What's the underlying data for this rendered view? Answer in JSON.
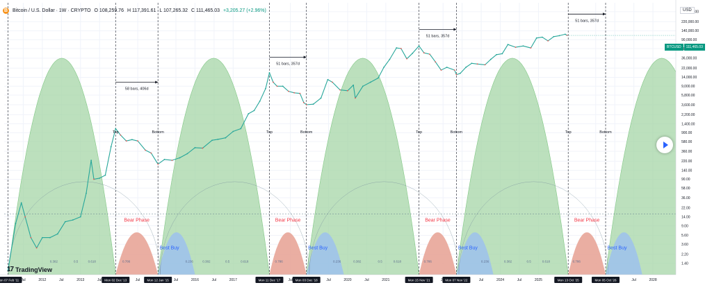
{
  "header": {
    "symbol": "Bitcoin / U.S. Dollar · 1W · CRYPTO",
    "coin_glyph": "B",
    "open": "O 108,259.76",
    "high": "H 117,391.61",
    "low": "L 107,265.32",
    "close": "C 111,465.03",
    "change": "+3,205.27 (+2.96%)"
  },
  "axis_currency": "USD",
  "last_price": {
    "symbol": "BTCUSD",
    "value": "111,465.03"
  },
  "logo": {
    "mark": "17",
    "name": "TradingView"
  },
  "colors": {
    "green": "#a5d6a7",
    "red": "#e8a598",
    "blue": "#9ec3ea",
    "price": "#26a69a",
    "price_down": "#ef5350",
    "bear_text": "#f23645",
    "buy_text": "#2962ff"
  },
  "chart_data": {
    "type": "line",
    "title": "",
    "xlabel": "",
    "ylabel": "",
    "yscale": "log",
    "xlim": [
      2011.0,
      2028.6
    ],
    "ylim": [
      0.8,
      560000
    ],
    "y_ticks": [
      {
        "v": 1.4,
        "label": "1.40"
      },
      {
        "v": 2.2,
        "label": "2.20"
      },
      {
        "v": 3.6,
        "label": "3.60"
      },
      {
        "v": 5.6,
        "label": "5.60"
      },
      {
        "v": 9,
        "label": "9.00"
      },
      {
        "v": 14,
        "label": "14.00"
      },
      {
        "v": 22,
        "label": "22.00"
      },
      {
        "v": 36,
        "label": "36.00"
      },
      {
        "v": 58,
        "label": "58.00"
      },
      {
        "v": 90,
        "label": "90.00"
      },
      {
        "v": 140,
        "label": "140.00"
      },
      {
        "v": 220,
        "label": "220.00"
      },
      {
        "v": 360,
        "label": "360.00"
      },
      {
        "v": 580,
        "label": "580.00"
      },
      {
        "v": 900,
        "label": "900.00"
      },
      {
        "v": 1400,
        "label": "1,400.00"
      },
      {
        "v": 2200,
        "label": "2,200.00"
      },
      {
        "v": 3600,
        "label": "3,600.00"
      },
      {
        "v": 5800,
        "label": "5,800.00"
      },
      {
        "v": 9000,
        "label": "9,000.00"
      },
      {
        "v": 14000,
        "label": "14,000.00"
      },
      {
        "v": 22000,
        "label": "22,000.00"
      },
      {
        "v": 36000,
        "label": "36,000.00"
      },
      {
        "v": 58000,
        "label": "58,000.00"
      },
      {
        "v": 90000,
        "label": "90,000.00"
      },
      {
        "v": 140000,
        "label": "140,000.00"
      },
      {
        "v": 220000,
        "label": "220,000.00"
      },
      {
        "v": 360000,
        "label": "360,000.00"
      }
    ],
    "x_ticks": [
      {
        "t": 2011.5,
        "label": "Jul"
      },
      {
        "t": 2012.0,
        "label": "2012"
      },
      {
        "t": 2012.5,
        "label": "Jul"
      },
      {
        "t": 2013.0,
        "label": "2013"
      },
      {
        "t": 2013.5,
        "label": "Jul"
      },
      {
        "t": 2014.5,
        "label": "Jul"
      },
      {
        "t": 2015.5,
        "label": "Jul"
      },
      {
        "t": 2016.0,
        "label": "2016"
      },
      {
        "t": 2016.5,
        "label": "Jul"
      },
      {
        "t": 2017.0,
        "label": "2017"
      },
      {
        "t": 2018.5,
        "label": "Jul"
      },
      {
        "t": 2019.5,
        "label": "Jul"
      },
      {
        "t": 2020.0,
        "label": "2020"
      },
      {
        "t": 2020.5,
        "label": "Jul"
      },
      {
        "t": 2021.0,
        "label": "2021"
      },
      {
        "t": 2022.5,
        "label": "Jul"
      },
      {
        "t": 2023.0,
        "label": "2023"
      },
      {
        "t": 2023.5,
        "label": "Jul"
      },
      {
        "t": 2024.0,
        "label": "2024"
      },
      {
        "t": 2024.5,
        "label": "Jul"
      },
      {
        "t": 2025.0,
        "label": "2025"
      },
      {
        "t": 2026.5,
        "label": "Jul"
      },
      {
        "t": 2027.0,
        "label": "2027"
      },
      {
        "t": 2027.5,
        "label": "Jul"
      },
      {
        "t": 2028.0,
        "label": "2028"
      }
    ],
    "date_markers": [
      {
        "t": 2011.1,
        "label": "Mon 07 Feb '11"
      },
      {
        "t": 2013.92,
        "label": "Mon 02 Dec '13"
      },
      {
        "t": 2015.03,
        "label": "Mon 12 Jan '15"
      },
      {
        "t": 2017.95,
        "label": "Mon 11 Dec '17"
      },
      {
        "t": 2018.92,
        "label": "Mon 03 Dec '18"
      },
      {
        "t": 2021.87,
        "label": "Mon 15 Nov '21"
      },
      {
        "t": 2022.85,
        "label": "Mon 07 Nov '22"
      },
      {
        "t": 2025.78,
        "label": "Mon 13 Oct '25"
      },
      {
        "t": 2026.76,
        "label": "Mon 05 Oct '26"
      }
    ],
    "big_arcs": [
      {
        "t0": 2011.1,
        "t1": 2013.92
      },
      {
        "t0": 2015.03,
        "t1": 2017.95
      },
      {
        "t0": 2018.92,
        "t1": 2021.87
      },
      {
        "t0": 2022.85,
        "t1": 2025.78
      },
      {
        "t0": 2026.76,
        "t1": 2029.7
      }
    ],
    "arc_peak": 36000,
    "bear_arcs": [
      {
        "t0": 2013.92,
        "t1": 2015.03,
        "label": "Bear Phase"
      },
      {
        "t0": 2017.95,
        "t1": 2018.92,
        "label": "Bear Phase"
      },
      {
        "t0": 2021.87,
        "t1": 2022.85,
        "label": "Bear Phase"
      },
      {
        "t0": 2025.78,
        "t1": 2026.76,
        "label": "Bear Phase"
      }
    ],
    "buy_arcs": [
      {
        "t0": 2015.03,
        "t1": 2016.0,
        "label": "Best Buy"
      },
      {
        "t0": 2018.92,
        "t1": 2019.9,
        "label": "Best Buy"
      },
      {
        "t0": 2022.85,
        "t1": 2023.82,
        "label": "Best Buy"
      },
      {
        "t0": 2026.76,
        "t1": 2027.72,
        "label": "Best Buy"
      }
    ],
    "small_arc_peak": 6.5,
    "bear_label_price": 11,
    "buy_label_price": 2.8,
    "top_bottom_labels": [
      {
        "t": 2013.92,
        "text": "Top"
      },
      {
        "t": 2015.03,
        "text": "Bottom"
      },
      {
        "t": 2017.95,
        "text": "Top"
      },
      {
        "t": 2018.92,
        "text": "Bottom"
      },
      {
        "t": 2021.87,
        "text": "Top"
      },
      {
        "t": 2022.85,
        "text": "Bottom"
      },
      {
        "t": 2025.78,
        "text": "Top"
      },
      {
        "t": 2026.76,
        "text": "Bottom"
      }
    ],
    "top_bottom_price": 880,
    "spans": [
      {
        "t0": 2013.92,
        "t1": 2015.03,
        "price": 11000,
        "label": "58 bars, 406d"
      },
      {
        "t0": 2017.95,
        "t1": 2018.92,
        "price": 38000,
        "label": "51 bars, 357d"
      },
      {
        "t0": 2021.87,
        "t1": 2022.85,
        "price": 150000,
        "label": "51 bars, 357d"
      },
      {
        "t0": 2025.78,
        "t1": 2026.76,
        "price": 320000,
        "label": "51 bars, 357d"
      }
    ],
    "fib_levels": [
      {
        "t": 2012.3,
        "label": "0.382"
      },
      {
        "t": 2012.88,
        "label": "0.5"
      },
      {
        "t": 2013.3,
        "label": "0.618"
      },
      {
        "t": 2014.2,
        "label": "0.786"
      },
      {
        "t": 2015.85,
        "label": "0.236"
      },
      {
        "t": 2016.3,
        "label": "0.382"
      },
      {
        "t": 2016.85,
        "label": "0.5"
      },
      {
        "t": 2017.3,
        "label": "0.618"
      },
      {
        "t": 2018.2,
        "label": "0.786"
      },
      {
        "t": 2019.72,
        "label": "0.236"
      },
      {
        "t": 2020.25,
        "label": "0.382"
      },
      {
        "t": 2020.85,
        "label": "0.5"
      },
      {
        "t": 2021.3,
        "label": "0.618"
      },
      {
        "t": 2022.1,
        "label": "0.786"
      },
      {
        "t": 2023.6,
        "label": "0.236"
      },
      {
        "t": 2024.2,
        "label": "0.382"
      },
      {
        "t": 2024.75,
        "label": "0.5"
      },
      {
        "t": 2025.2,
        "label": "0.618"
      },
      {
        "t": 2026.0,
        "label": "0.786"
      }
    ],
    "fib_price": 1.45,
    "hline_price": 16,
    "series": [
      {
        "name": "BTCUSD",
        "x": [
          2011.1,
          2011.3,
          2011.45,
          2011.55,
          2011.7,
          2011.85,
          2012.0,
          2012.2,
          2012.4,
          2012.6,
          2012.8,
          2013.0,
          2013.15,
          2013.28,
          2013.35,
          2013.5,
          2013.65,
          2013.8,
          2013.92,
          2014.05,
          2014.2,
          2014.35,
          2014.5,
          2014.7,
          2014.85,
          2015.03,
          2015.2,
          2015.4,
          2015.6,
          2015.8,
          2016.0,
          2016.2,
          2016.45,
          2016.6,
          2016.8,
          2017.0,
          2017.2,
          2017.4,
          2017.55,
          2017.7,
          2017.85,
          2017.95,
          2018.05,
          2018.15,
          2018.3,
          2018.45,
          2018.6,
          2018.75,
          2018.85,
          2018.92,
          2019.1,
          2019.3,
          2019.48,
          2019.6,
          2019.8,
          2020.0,
          2020.15,
          2020.2,
          2020.4,
          2020.6,
          2020.8,
          2020.95,
          2021.1,
          2021.28,
          2021.4,
          2021.55,
          2021.7,
          2021.87,
          2022.0,
          2022.15,
          2022.3,
          2022.45,
          2022.6,
          2022.8,
          2022.85,
          2022.95,
          2023.1,
          2023.25,
          2023.4,
          2023.6,
          2023.75,
          2023.9,
          2024.05,
          2024.2,
          2024.4,
          2024.6,
          2024.8,
          2024.95,
          2025.1,
          2025.25,
          2025.4,
          2025.55,
          2025.7,
          2025.75
        ],
        "values": [
          1.0,
          10,
          28,
          14,
          5,
          3,
          5,
          5,
          6,
          11,
          12,
          14,
          45,
          230,
          90,
          95,
          110,
          450,
          1100,
          800,
          600,
          640,
          600,
          380,
          330,
          190,
          240,
          230,
          260,
          320,
          430,
          420,
          620,
          650,
          700,
          960,
          1100,
          2300,
          2700,
          4300,
          8000,
          17500,
          11000,
          9000,
          9000,
          7000,
          6500,
          6300,
          4000,
          3600,
          3700,
          5000,
          12500,
          11000,
          7500,
          7200,
          9500,
          5000,
          9000,
          11000,
          13500,
          23000,
          34000,
          60000,
          58000,
          35000,
          46000,
          66000,
          47000,
          44000,
          30000,
          20000,
          23000,
          20000,
          16000,
          17000,
          23000,
          28000,
          27000,
          26000,
          34000,
          43000,
          45000,
          71000,
          62000,
          66000,
          60000,
          98000,
          102000,
          85000,
          105000,
          110000,
          118000,
          111465
        ]
      }
    ]
  }
}
